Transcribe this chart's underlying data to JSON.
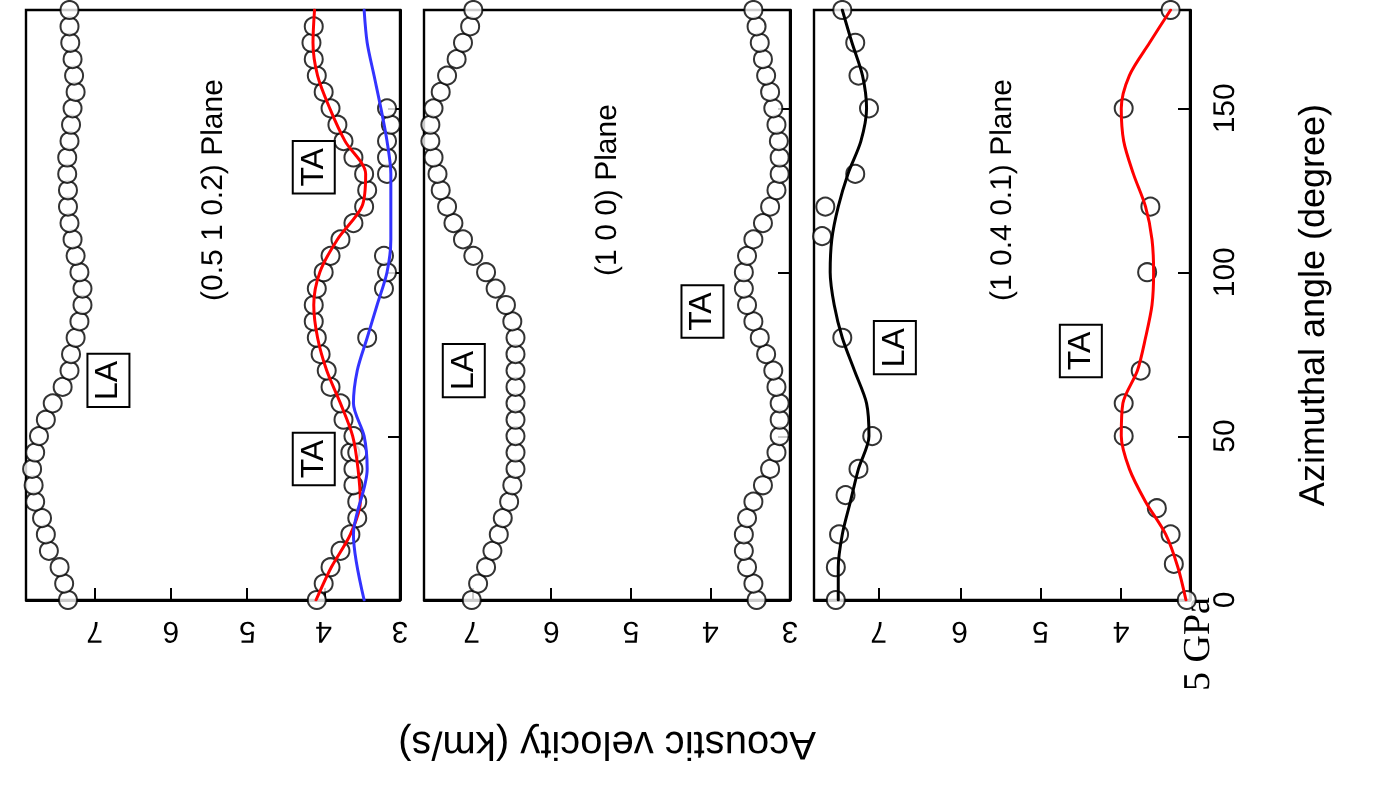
{
  "chart_data": [
    {
      "type": "scatter",
      "xlim": [
        7.9,
        3
      ],
      "xticks": [
        3,
        4,
        5,
        6,
        7
      ],
      "ylim": [
        0,
        180
      ],
      "yticks": [
        0,
        50,
        100,
        150
      ],
      "tick_labels": "x",
      "marker": "circle",
      "annotations": [
        "(0.5 1 0.2) Plane",
        {
          "text": "LA",
          "x": 6.82,
          "y": 67
        },
        {
          "text": "TA",
          "x": 4.13,
          "y": 132
        },
        {
          "text": "TA",
          "x": 4.13,
          "y": 43
        }
      ],
      "series": [
        {
          "type": "line",
          "marker": "none",
          "color": "#ff0000",
          "x": [
            4.1,
            3.9,
            3.65,
            3.52,
            3.55,
            3.62,
            3.78,
            3.96,
            4.08,
            4.13,
            4.05,
            3.82,
            3.5,
            3.45,
            3.72,
            3.92,
            4.08,
            4.14,
            4.12
          ],
          "values": [
            0,
            10,
            20,
            30,
            40,
            50,
            60,
            70,
            80,
            90,
            100,
            110,
            120,
            130,
            140,
            150,
            160,
            170,
            180
          ]
        },
        {
          "type": "line",
          "marker": "none",
          "color": "#3333ff",
          "x": [
            3.47,
            3.61,
            3.43,
            3.47,
            3.61,
            3.56,
            3.43,
            3.3,
            3.17,
            3.12,
            3.12,
            3.12,
            3.17,
            3.25,
            3.34,
            3.43,
            3.47
          ],
          "values": [
            0,
            20,
            40,
            50,
            60,
            70,
            80,
            90,
            100,
            110,
            120,
            130,
            140,
            150,
            160,
            170,
            180
          ]
        },
        {
          "color": "#000000",
          "x": [
            7.35,
            7.4,
            7.46,
            7.6,
            7.64,
            7.69,
            7.78,
            7.8,
            7.82,
            7.78,
            7.73,
            7.64,
            7.55,
            7.42,
            7.33,
            7.31,
            7.25,
            7.2,
            7.16,
            7.16,
            7.2,
            7.25,
            7.29,
            7.33,
            7.35,
            7.35,
            7.36,
            7.36,
            7.33,
            7.31,
            7.29,
            7.25,
            7.27,
            7.29,
            7.32,
            7.33,
            7.33
          ],
          "values": [
            0,
            5,
            10,
            15,
            20,
            25,
            30,
            35,
            40,
            45,
            50,
            55,
            60,
            65,
            70,
            75,
            80,
            85,
            90,
            95,
            100,
            105,
            110,
            115,
            120,
            125,
            130,
            135,
            140,
            145,
            150,
            155,
            160,
            165,
            170,
            175,
            180
          ]
        },
        {
          "color": "#000000",
          "x": [
            4.09,
            4.0,
            3.91,
            3.78,
            3.65,
            3.56,
            3.56,
            3.61,
            3.65,
            3.61,
            3.74,
            3.78,
            3.91,
            3.96,
            4.04,
            4.09,
            4.13,
            4.13,
            4.09,
            4.0,
            3.91,
            3.78,
            3.61,
            3.47,
            3.43,
            3.47,
            3.61,
            3.74,
            3.82,
            3.91,
            4.0,
            4.09,
            4.13,
            4.16,
            4.13
          ],
          "values": [
            0,
            5,
            10,
            15,
            20,
            25,
            30,
            35,
            45,
            50,
            55,
            60,
            65,
            70,
            75,
            80,
            85,
            90,
            95,
            100,
            105,
            110,
            115,
            120,
            125,
            130,
            135,
            140,
            145,
            150,
            155,
            160,
            165,
            170,
            175
          ]
        },
        {
          "color": "#000000",
          "x": [
            3.61,
            3.56,
            3.43,
            3.21,
            3.17,
            3.21,
            3.17,
            3.17,
            3.17,
            3.12,
            3.17
          ],
          "values": [
            40,
            45,
            80,
            95,
            100,
            105,
            130,
            135,
            140,
            145,
            150
          ]
        }
      ]
    },
    {
      "type": "scatter",
      "xlim": [
        7.6,
        3
      ],
      "xticks": [
        3,
        4,
        5,
        6,
        7
      ],
      "ylim": [
        0,
        180
      ],
      "yticks": [
        0,
        50,
        100,
        150
      ],
      "tick_labels": "x",
      "marker": "circle",
      "xlabel": "Acoustic velocity (km/s)",
      "annotations": [
        "(1 0 0) Plane",
        {
          "text": "LA",
          "x": 7.1,
          "y": 70
        },
        {
          "text": "TA",
          "x": 4.1,
          "y": 88
        }
      ],
      "series": [
        {
          "color": "#000000",
          "x": [
            7.0,
            6.92,
            6.82,
            6.74,
            6.66,
            6.61,
            6.53,
            6.49,
            6.45,
            6.45,
            6.45,
            6.45,
            6.45,
            6.45,
            6.45,
            6.45,
            6.45,
            6.49,
            6.57,
            6.7,
            6.82,
            6.98,
            7.11,
            7.23,
            7.31,
            7.39,
            7.43,
            7.48,
            7.52,
            7.52,
            7.48,
            7.39,
            7.31,
            7.19,
            7.11,
            7.02,
            6.98
          ],
          "values": [
            0,
            5,
            10,
            15,
            20,
            25,
            30,
            35,
            40,
            45,
            50,
            55,
            60,
            65,
            70,
            75,
            80,
            85,
            90,
            95,
            100,
            105,
            110,
            115,
            120,
            125,
            130,
            135,
            140,
            145,
            150,
            155,
            160,
            165,
            170,
            175,
            180
          ]
        },
        {
          "color": "#000000",
          "x": [
            3.42,
            3.46,
            3.54,
            3.58,
            3.58,
            3.54,
            3.46,
            3.34,
            3.25,
            3.17,
            3.13,
            3.13,
            3.13,
            3.17,
            3.21,
            3.3,
            3.38,
            3.46,
            3.54,
            3.58,
            3.58,
            3.54,
            3.46,
            3.34,
            3.25,
            3.17,
            3.13,
            3.13,
            3.14,
            3.17,
            3.21,
            3.25,
            3.3,
            3.34,
            3.38,
            3.42,
            3.46
          ],
          "values": [
            0,
            5,
            10,
            15,
            20,
            25,
            30,
            35,
            40,
            45,
            50,
            55,
            60,
            65,
            70,
            75,
            80,
            85,
            90,
            95,
            100,
            105,
            110,
            115,
            120,
            125,
            130,
            135,
            140,
            145,
            150,
            155,
            160,
            165,
            170,
            175,
            180
          ]
        }
      ]
    },
    {
      "type": "scatter",
      "xlim": [
        7.8,
        3.15
      ],
      "xticks": [
        4,
        5,
        6,
        7
      ],
      "ylim": [
        0,
        180
      ],
      "yticks": [
        0,
        50,
        100,
        150
      ],
      "marker": "circle",
      "ylabel": "Azimuthal angle (degree)",
      "annotations": [
        "(1 0.4 0.1) Plane",
        {
          "text": "LA",
          "x": 6.8,
          "y": 77
        },
        {
          "text": "TA",
          "x": 4.5,
          "y": 76
        },
        "5 GPa"
      ],
      "series": [
        {
          "type": "line",
          "marker": "none",
          "color": "#000000",
          "x": [
            7.5,
            7.5,
            7.45,
            7.35,
            7.25,
            7.12,
            7.15,
            7.3,
            7.45,
            7.55,
            7.6,
            7.58,
            7.5,
            7.38,
            7.22,
            7.15,
            7.2,
            7.33,
            7.45
          ],
          "values": [
            0,
            10,
            20,
            30,
            40,
            50,
            60,
            70,
            80,
            90,
            100,
            110,
            120,
            130,
            140,
            150,
            160,
            170,
            180
          ]
        },
        {
          "type": "line",
          "marker": "none",
          "color": "#ff0000",
          "x": [
            3.2,
            3.3,
            3.45,
            3.7,
            3.9,
            4.0,
            3.98,
            3.8,
            3.7,
            3.62,
            3.6,
            3.62,
            3.7,
            3.85,
            3.97,
            4.0,
            3.9,
            3.65,
            3.39
          ],
          "values": [
            0,
            10,
            20,
            30,
            40,
            50,
            60,
            70,
            80,
            90,
            100,
            110,
            120,
            130,
            140,
            150,
            160,
            170,
            180
          ]
        },
        {
          "color": "#000000",
          "x": [
            7.53,
            7.53,
            7.49,
            7.41,
            7.25,
            7.08,
            7.45,
            7.7,
            7.66,
            7.29,
            7.12,
            7.25,
            7.29,
            7.45
          ],
          "values": [
            0,
            10,
            20,
            32,
            40,
            50,
            80,
            111,
            120,
            130,
            150,
            160,
            170,
            180
          ]
        },
        {
          "color": "#000000",
          "x": [
            3.19,
            3.35,
            3.39,
            3.56,
            3.97,
            3.97,
            3.76,
            3.68,
            3.64,
            3.97,
            3.39
          ],
          "values": [
            0,
            11,
            20,
            28,
            50,
            60,
            70,
            100,
            120,
            150,
            180
          ]
        }
      ]
    }
  ]
}
